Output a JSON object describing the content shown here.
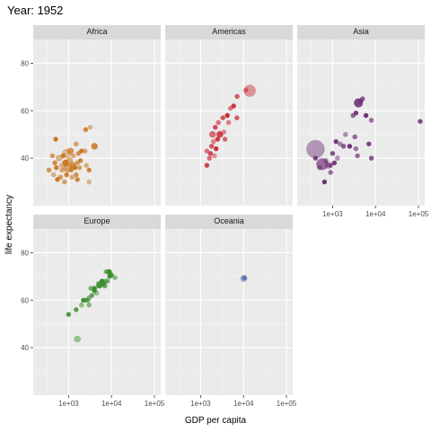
{
  "chart_data": {
    "type": "scatter",
    "title": "Year: 1952",
    "xlabel": "GDP per capita",
    "ylabel": "life expectancy",
    "x_scale": "log10",
    "xlim": [
      150,
      140000
    ],
    "ylim": [
      20,
      90
    ],
    "x_ticks": [
      1000,
      10000,
      100000
    ],
    "x_tick_labels": [
      "1e+03",
      "1e+04",
      "1e+05"
    ],
    "y_ticks": [
      40,
      60,
      80
    ],
    "y_tick_labels": [
      "40",
      "60",
      "80"
    ],
    "grid": true,
    "legend": "none",
    "facet_layout": "3 columns x 2 rows",
    "panels": [
      {
        "label": "Africa",
        "color": "#c8741d",
        "points": [
          [
            500,
            48,
            1
          ],
          [
            1500,
            46,
            1
          ],
          [
            2500,
            52,
            1
          ],
          [
            3200,
            53,
            1
          ],
          [
            4000,
            45,
            2
          ],
          [
            420,
            41,
            1
          ],
          [
            600,
            40,
            2
          ],
          [
            750,
            41,
            1
          ],
          [
            900,
            42,
            3
          ],
          [
            1100,
            43,
            2
          ],
          [
            1300,
            41,
            1
          ],
          [
            1700,
            42,
            1
          ],
          [
            2000,
            43,
            1
          ],
          [
            2400,
            43,
            1
          ],
          [
            480,
            38,
            1
          ],
          [
            680,
            37,
            1
          ],
          [
            850,
            38,
            2
          ],
          [
            1050,
            39,
            2
          ],
          [
            1250,
            37,
            2
          ],
          [
            1600,
            38,
            1
          ],
          [
            1900,
            39,
            1
          ],
          [
            2600,
            37,
            1
          ],
          [
            350,
            35,
            1
          ],
          [
            520,
            36,
            1
          ],
          [
            700,
            35,
            1
          ],
          [
            950,
            36,
            3
          ],
          [
            1150,
            35,
            1
          ],
          [
            1400,
            36,
            1
          ],
          [
            1800,
            36,
            1
          ],
          [
            3000,
            35,
            1
          ],
          [
            450,
            33,
            1
          ],
          [
            650,
            32,
            1
          ],
          [
            900,
            33,
            1
          ],
          [
            1200,
            32,
            1
          ],
          [
            1500,
            33,
            1
          ],
          [
            550,
            31,
            1
          ],
          [
            800,
            30,
            1
          ],
          [
            1600,
            31,
            1
          ],
          [
            3000,
            30,
            1
          ]
        ]
      },
      {
        "label": "Americas",
        "color": "#c82633",
        "points": [
          [
            13990,
            68.4,
            4
          ],
          [
            11400,
            68.7,
            1
          ],
          [
            7100,
            66,
            1
          ],
          [
            5900,
            62,
            1
          ],
          [
            5000,
            61,
            1
          ],
          [
            3300,
            57,
            1
          ],
          [
            4200,
            58,
            1
          ],
          [
            2600,
            55,
            1
          ],
          [
            2200,
            53,
            1
          ],
          [
            1900,
            50,
            2
          ],
          [
            2800,
            50,
            2
          ],
          [
            3500,
            51,
            1
          ],
          [
            3700,
            48,
            1
          ],
          [
            2500,
            48,
            1
          ],
          [
            2000,
            47,
            1
          ],
          [
            1800,
            45,
            1
          ],
          [
            2300,
            44,
            1
          ],
          [
            1400,
            43,
            1
          ],
          [
            1700,
            42,
            1
          ],
          [
            2100,
            41,
            1
          ],
          [
            1600,
            40,
            1
          ],
          [
            1400,
            37,
            1
          ],
          [
            4500,
            55,
            1
          ],
          [
            7000,
            57,
            1
          ]
        ]
      },
      {
        "label": "Asia",
        "color": "#6b2a72",
        "points": [
          [
            400,
            43.8,
            5
          ],
          [
            575,
            37.5,
            4
          ],
          [
            800,
            37,
            2
          ],
          [
            4000,
            63.3,
            3
          ],
          [
            3000,
            58,
            1
          ],
          [
            3500,
            59,
            1
          ],
          [
            4500,
            64,
            1
          ],
          [
            5000,
            65,
            1
          ],
          [
            6000,
            58,
            1
          ],
          [
            8000,
            56,
            1
          ],
          [
            110000,
            55.5,
            1
          ],
          [
            2000,
            50,
            1
          ],
          [
            3300,
            49,
            1
          ],
          [
            1200,
            47,
            1
          ],
          [
            1500,
            46,
            1
          ],
          [
            1800,
            45,
            1
          ],
          [
            2500,
            45,
            1
          ],
          [
            3500,
            44,
            1
          ],
          [
            1000,
            42,
            1
          ],
          [
            1300,
            40,
            1
          ],
          [
            3800,
            41,
            1
          ],
          [
            7000,
            46,
            1
          ],
          [
            700,
            39,
            1
          ],
          [
            900,
            37,
            1
          ],
          [
            1100,
            38,
            1
          ],
          [
            500,
            36,
            1
          ],
          [
            8000,
            40,
            1
          ],
          [
            650,
            30,
            1
          ],
          [
            900,
            34,
            1
          ],
          [
            400,
            40,
            1
          ]
        ]
      },
      {
        "label": "Europe",
        "color": "#3a8a2c",
        "points": [
          [
            1600,
            43.6,
            2
          ],
          [
            1000,
            54,
            1
          ],
          [
            2000,
            58,
            1
          ],
          [
            2500,
            60,
            1
          ],
          [
            2200,
            60,
            1
          ],
          [
            3000,
            61,
            1
          ],
          [
            3500,
            62,
            1
          ],
          [
            4000,
            64,
            1
          ],
          [
            3300,
            65,
            1
          ],
          [
            5000,
            66,
            1
          ],
          [
            6000,
            67,
            2
          ],
          [
            7000,
            68,
            1
          ],
          [
            8000,
            68,
            1
          ],
          [
            9000,
            70,
            1
          ],
          [
            12000,
            69.5,
            1
          ],
          [
            10000,
            70.5,
            1
          ],
          [
            8500,
            72,
            1
          ],
          [
            7500,
            72,
            1
          ],
          [
            1500,
            56,
            1
          ],
          [
            4500,
            63,
            1
          ],
          [
            5500,
            66,
            1
          ],
          [
            6500,
            67,
            1
          ],
          [
            9500,
            71,
            1
          ],
          [
            7000,
            66,
            1
          ],
          [
            4000,
            65,
            1
          ],
          [
            3000,
            58,
            1
          ],
          [
            5000,
            67,
            1
          ],
          [
            6000,
            68,
            1
          ],
          [
            2800,
            60,
            1
          ],
          [
            9000,
            72,
            1
          ]
        ]
      },
      {
        "label": "Oceania",
        "color": "#3b5ba0",
        "points": [
          [
            10100,
            69.1,
            2
          ],
          [
            10600,
            69.4,
            1
          ]
        ]
      }
    ]
  }
}
